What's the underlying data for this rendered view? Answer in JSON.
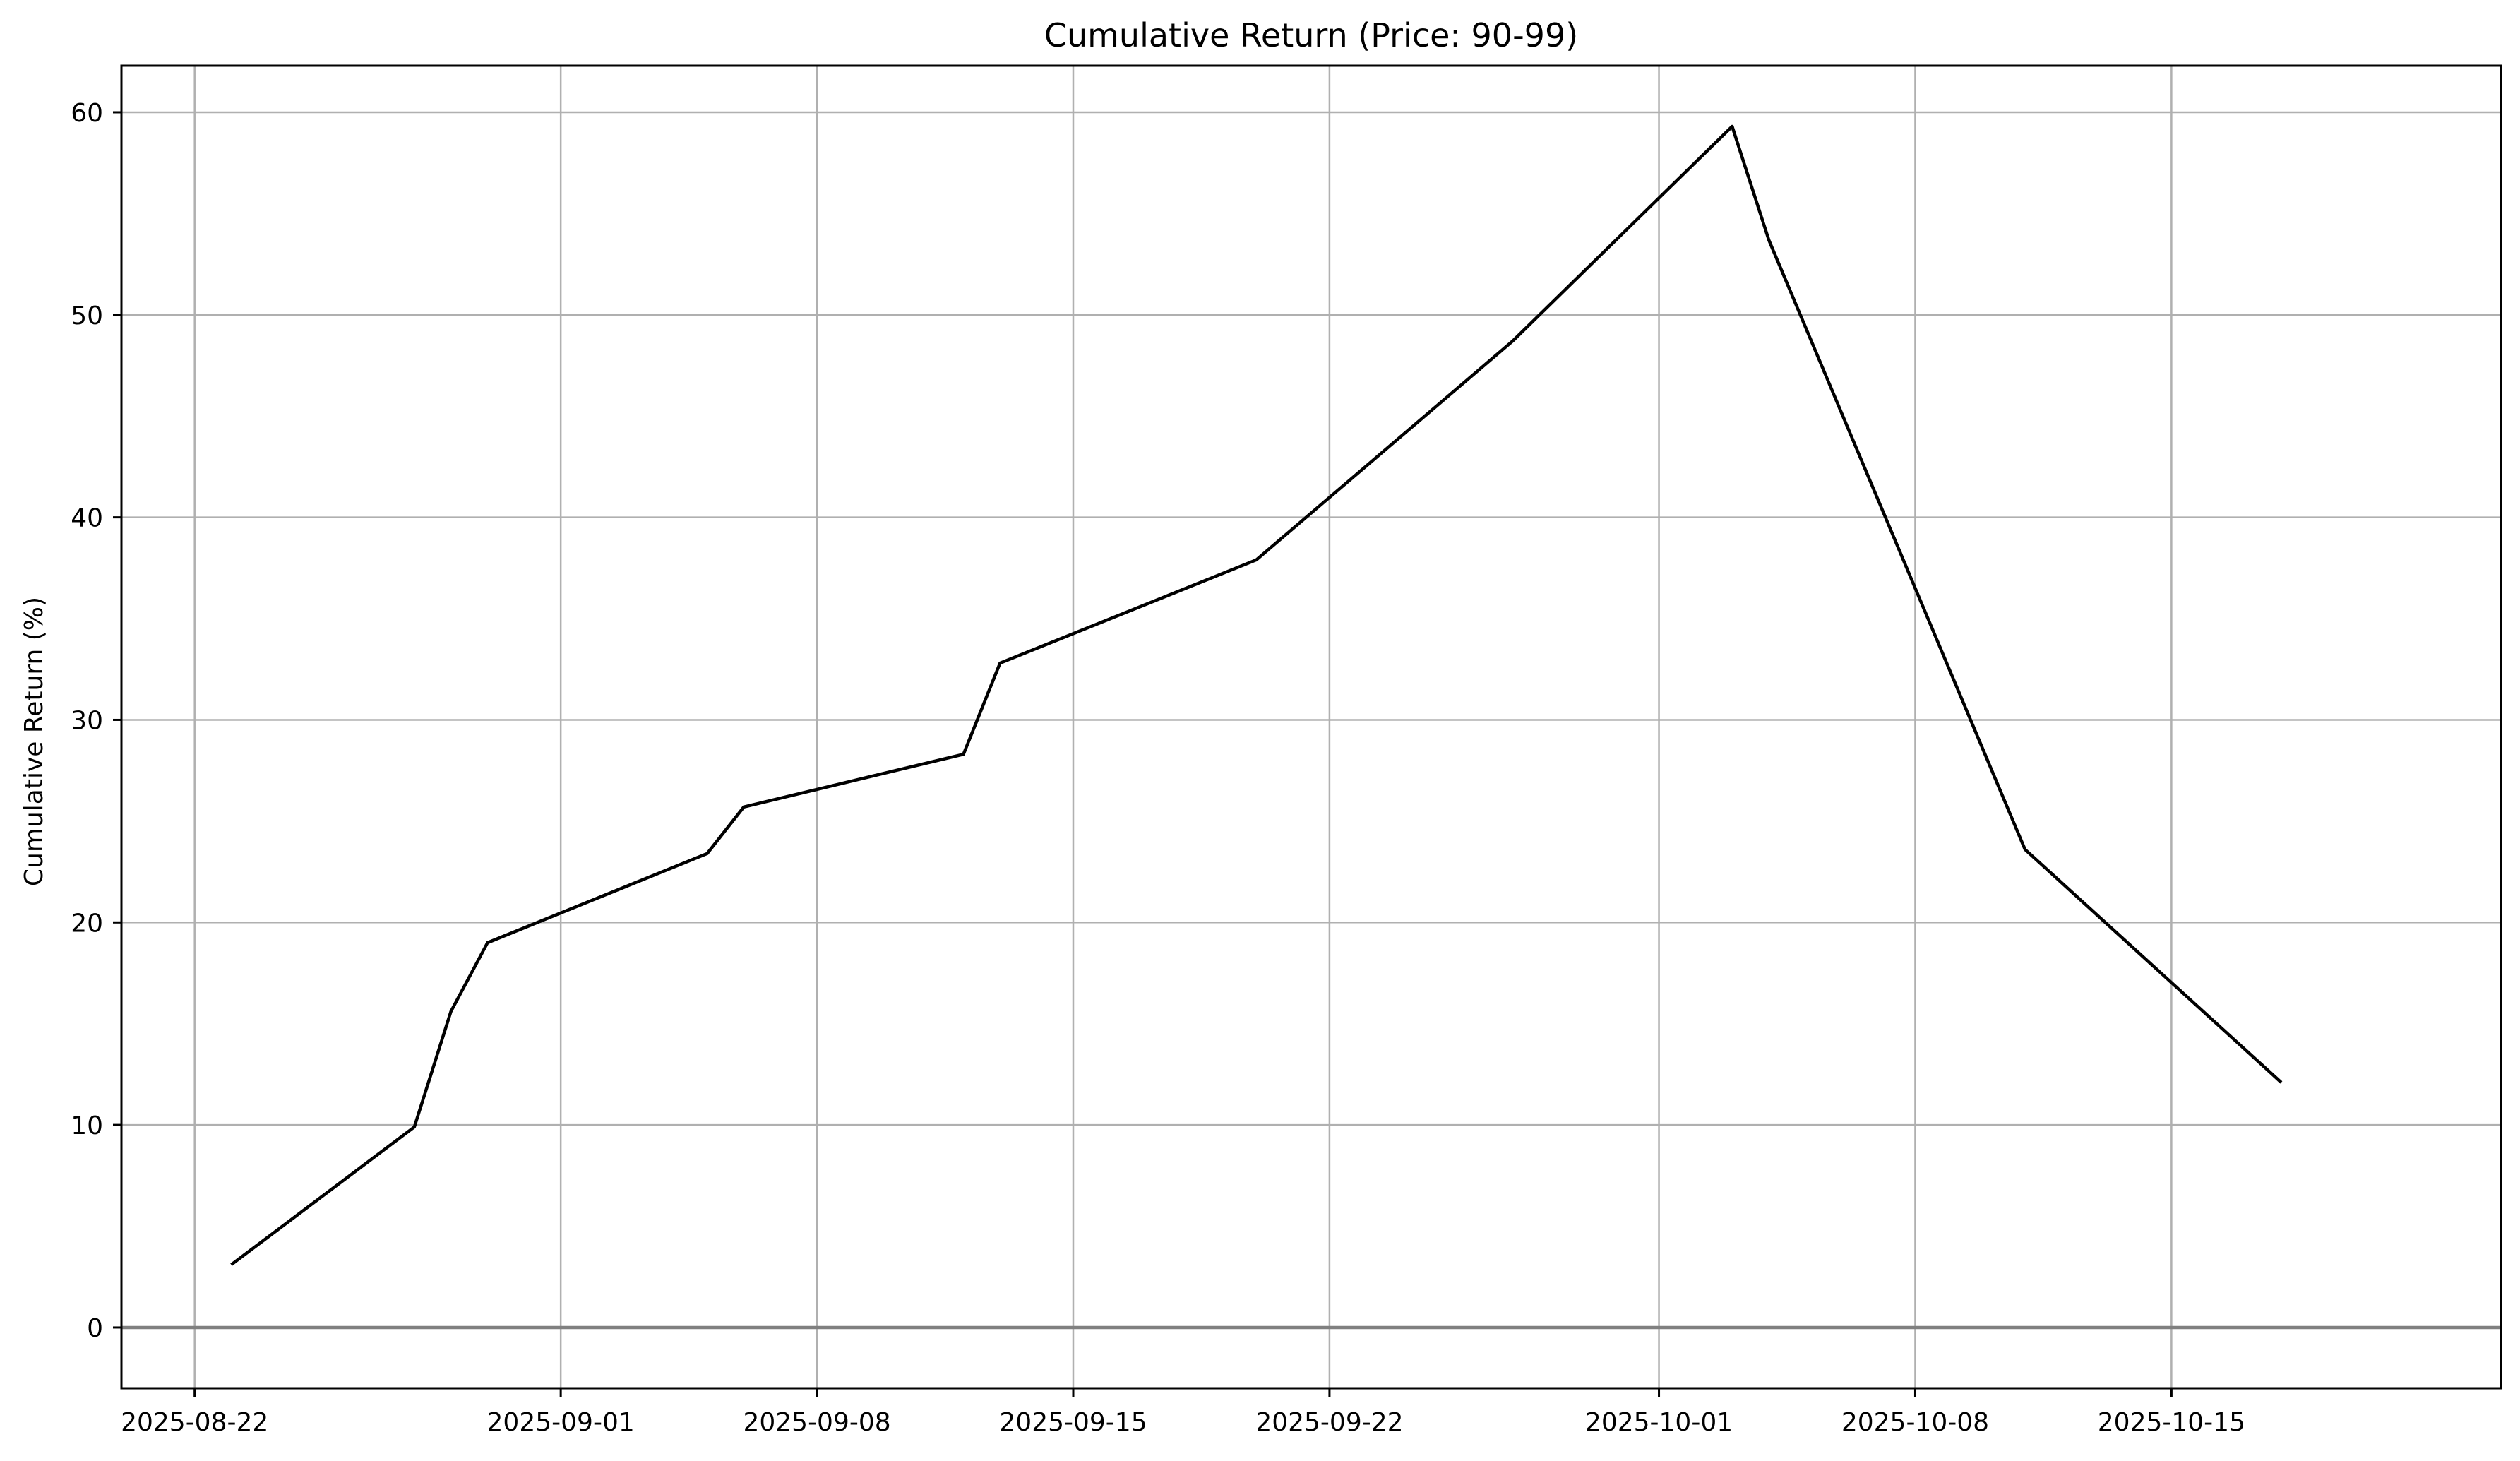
{
  "chart_data": {
    "type": "line",
    "title": "Cumulative Return (Price: 90-99)",
    "xlabel": "",
    "ylabel": "Cumulative Return (%)",
    "x_type": "date",
    "xlim": [
      "2025-08-20",
      "2025-10-24"
    ],
    "ylim": [
      -3,
      62.3
    ],
    "x_ticks": [
      "2025-08-22",
      "2025-09-01",
      "2025-09-08",
      "2025-09-15",
      "2025-09-22",
      "2025-10-01",
      "2025-10-08",
      "2025-10-15"
    ],
    "y_ticks": [
      0,
      10,
      20,
      30,
      40,
      50,
      60
    ],
    "grid": true,
    "reference_line": {
      "y": 0,
      "color": "#808080"
    },
    "series": [
      {
        "color": "#000000",
        "x": [
          "2025-08-23",
          "2025-08-28",
          "2025-08-29",
          "2025-08-30",
          "2025-09-05",
          "2025-09-06",
          "2025-09-12",
          "2025-09-13",
          "2025-09-20",
          "2025-09-27",
          "2025-10-03",
          "2025-10-04",
          "2025-10-11",
          "2025-10-18"
        ],
        "y": [
          3.1,
          9.9,
          15.6,
          19.0,
          23.4,
          25.7,
          28.3,
          32.8,
          37.9,
          48.7,
          59.3,
          53.7,
          23.6,
          12.1
        ]
      }
    ]
  }
}
